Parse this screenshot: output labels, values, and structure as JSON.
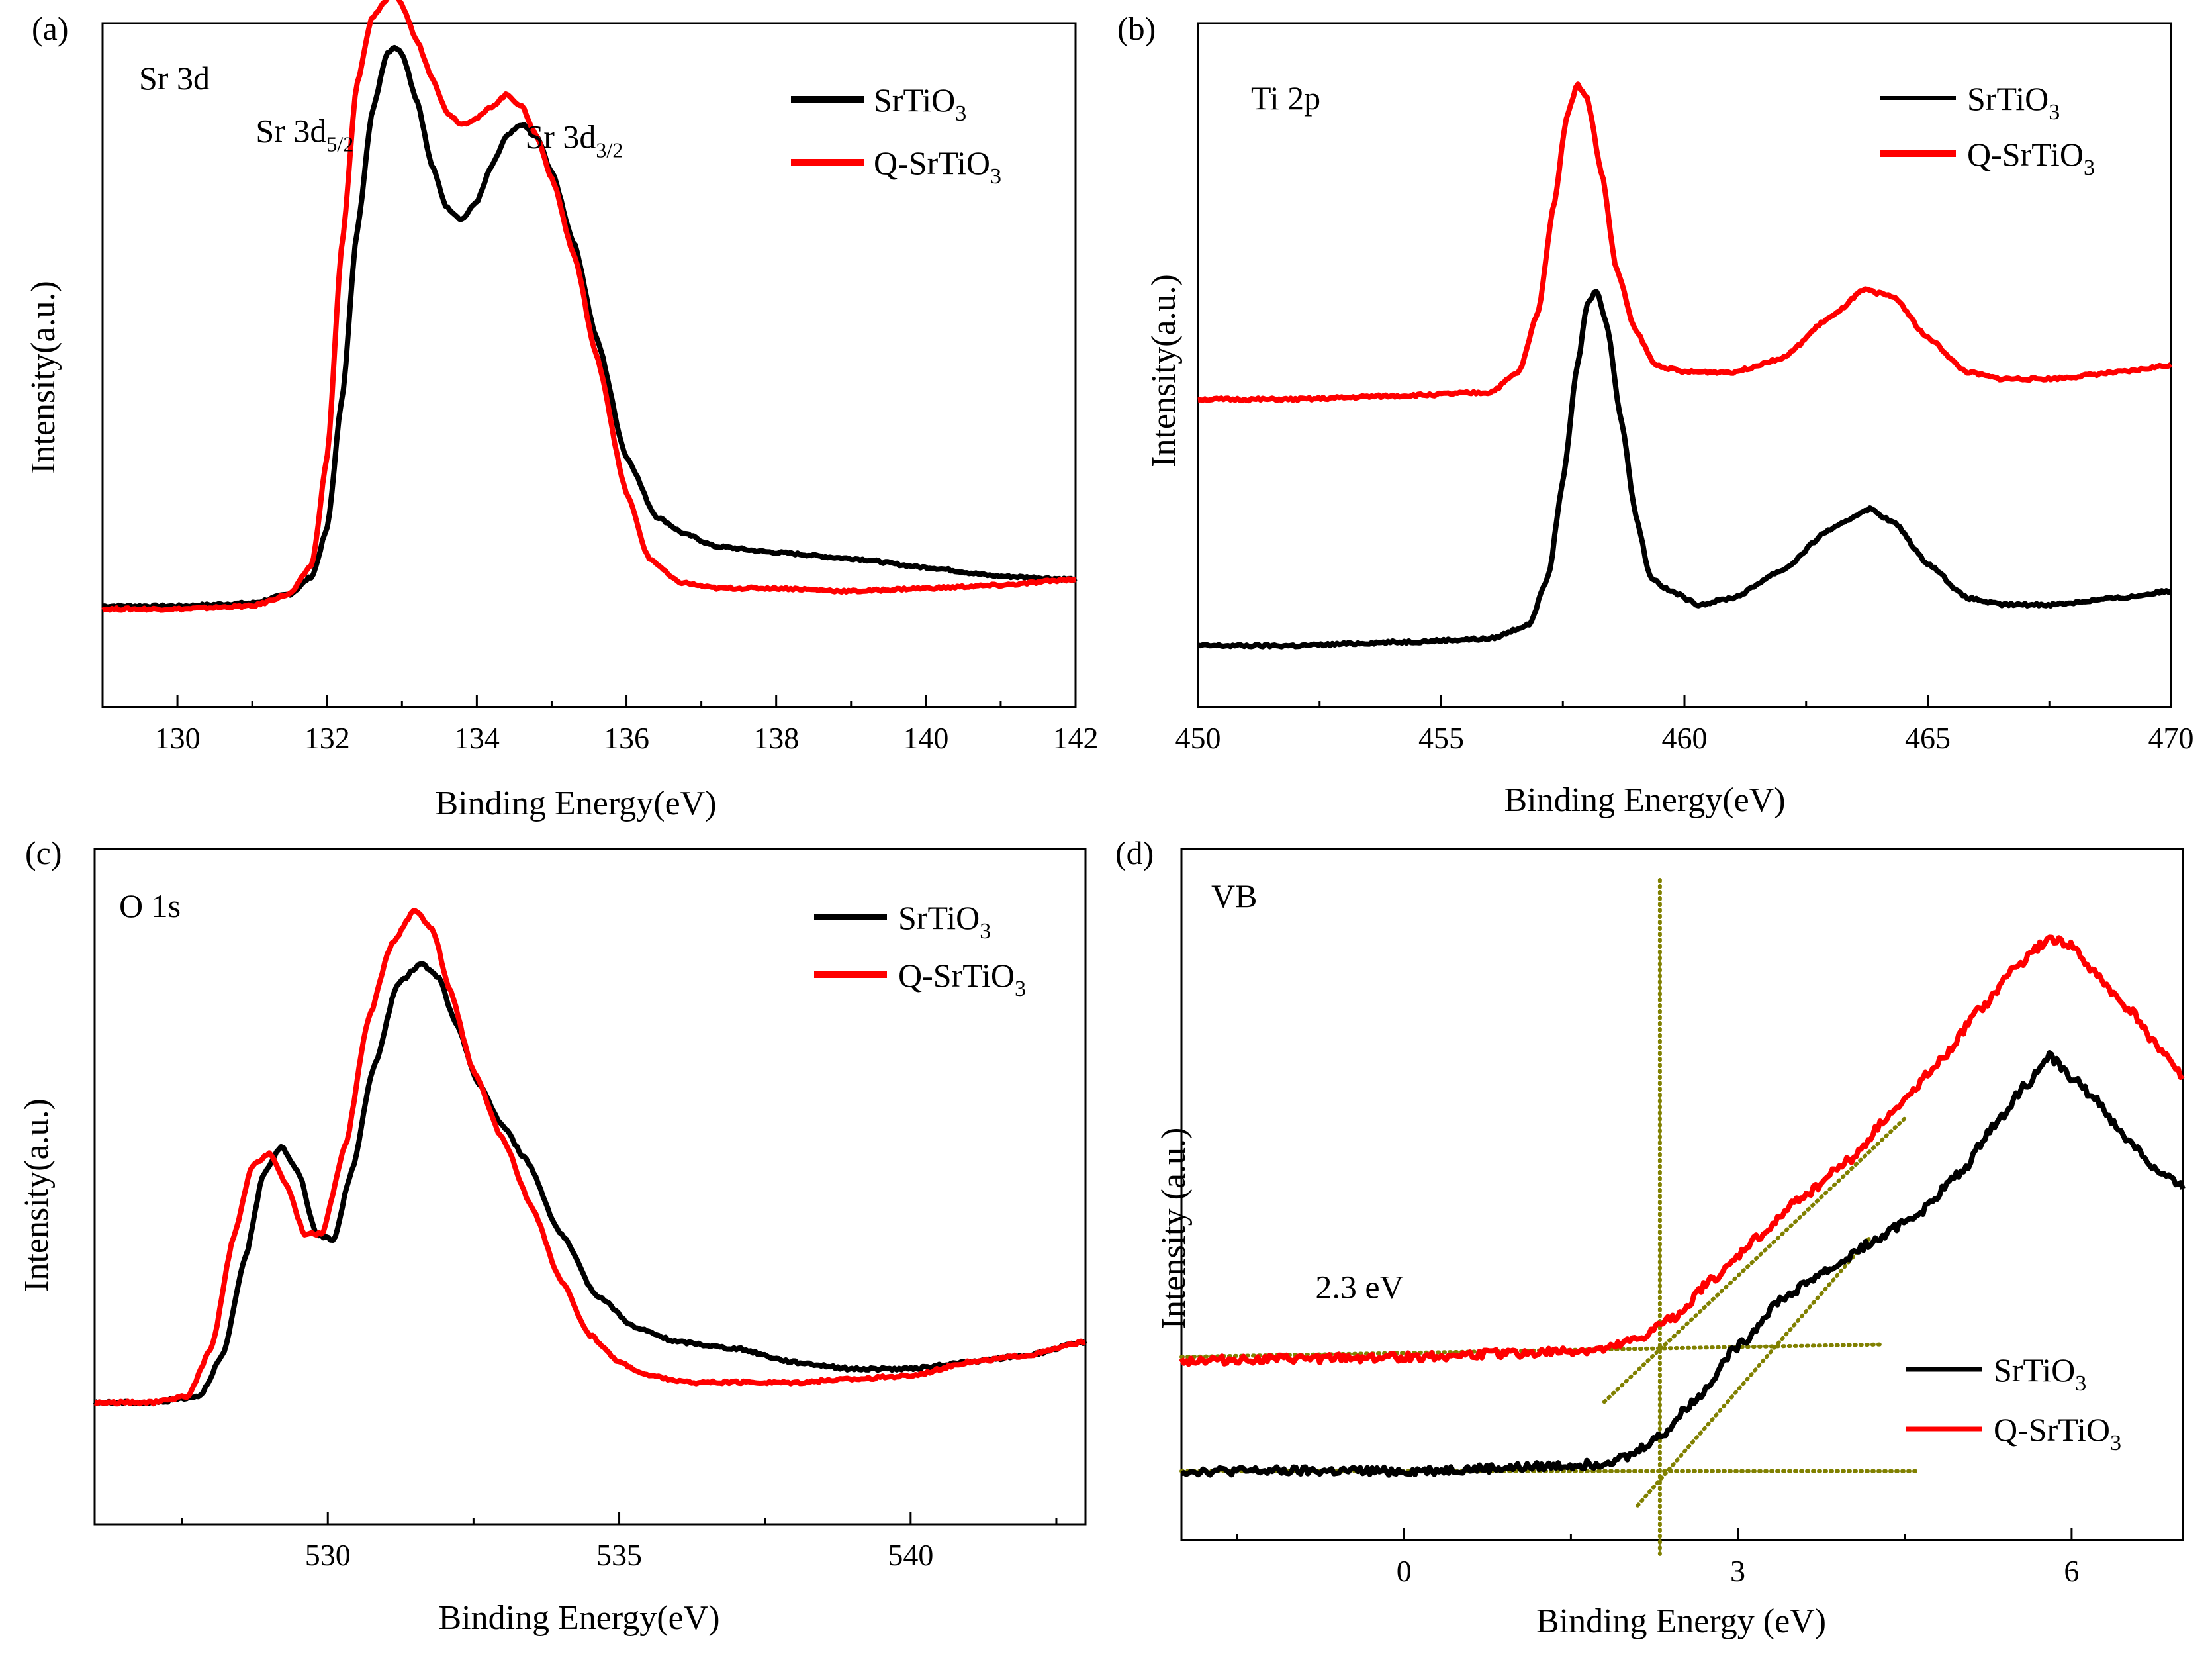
{
  "figure": {
    "colors": {
      "srtio3": "#000000",
      "q_srtio3": "#ff0000",
      "guide": "#808000",
      "axis": "#000000"
    }
  },
  "chart_data": [
    {
      "type": "line",
      "panel": "(a)",
      "region": "Sr 3d",
      "xlabel": "Binding Energy(eV)",
      "ylabel": "Intensity(a.u.)",
      "xlim": [
        129,
        142
      ],
      "ylim": [
        0,
        1.15
      ],
      "xticks": [
        130,
        132,
        134,
        136,
        138,
        140,
        142
      ],
      "legend": [
        "SrTiO3",
        "Q-SrTiO3"
      ],
      "legend_position": "top-right",
      "annotations": [
        {
          "base": "Sr 3d",
          "sub": "5/2",
          "x": 131.7,
          "y": 0.95
        },
        {
          "base": "Sr 3d",
          "sub": "3/2",
          "x": 135.3,
          "y": 0.94
        }
      ],
      "series": [
        {
          "name": "SrTiO3",
          "x": [
            129,
            130,
            131,
            131.5,
            131.8,
            132.0,
            132.2,
            132.4,
            132.6,
            132.8,
            132.9,
            133.0,
            133.2,
            133.4,
            133.6,
            133.8,
            134.0,
            134.2,
            134.4,
            134.6,
            134.8,
            135.0,
            135.3,
            135.6,
            136.0,
            136.4,
            136.8,
            137.2,
            138,
            139,
            140,
            141,
            142
          ],
          "values": [
            0.17,
            0.17,
            0.175,
            0.19,
            0.22,
            0.3,
            0.52,
            0.8,
            1.0,
            1.1,
            1.11,
            1.1,
            1.02,
            0.91,
            0.84,
            0.82,
            0.85,
            0.91,
            0.96,
            0.98,
            0.96,
            0.9,
            0.78,
            0.62,
            0.42,
            0.32,
            0.29,
            0.27,
            0.26,
            0.25,
            0.235,
            0.22,
            0.215
          ]
        },
        {
          "name": "Q-SrTiO3",
          "x": [
            129,
            130,
            131,
            131.5,
            131.8,
            132.0,
            132.2,
            132.4,
            132.6,
            132.8,
            132.9,
            133.0,
            133.2,
            133.4,
            133.6,
            133.8,
            134.0,
            134.2,
            134.4,
            134.6,
            134.8,
            135.0,
            135.3,
            135.6,
            136.0,
            136.3,
            136.7,
            137.2,
            138,
            139,
            140,
            141,
            142
          ],
          "values": [
            0.165,
            0.165,
            0.17,
            0.19,
            0.24,
            0.42,
            0.78,
            1.05,
            1.16,
            1.19,
            1.2,
            1.18,
            1.12,
            1.06,
            1.0,
            0.98,
            0.99,
            1.01,
            1.03,
            1.01,
            0.96,
            0.89,
            0.76,
            0.59,
            0.36,
            0.25,
            0.21,
            0.2,
            0.2,
            0.195,
            0.2,
            0.205,
            0.215
          ]
        }
      ]
    },
    {
      "type": "line",
      "panel": "(b)",
      "region": "Ti 2p",
      "xlabel": "Binding Energy(eV)",
      "ylabel": "Intensity(a.u.)",
      "xlim": [
        450,
        470
      ],
      "ylim": [
        0,
        1.0
      ],
      "xticks": [
        450,
        455,
        460,
        465,
        470
      ],
      "legend": [
        "SrTiO3",
        "Q-SrTiO3"
      ],
      "legend_position": "top-right",
      "series": [
        {
          "name": "SrTiO3",
          "x": [
            450,
            452,
            454,
            456,
            456.8,
            457.2,
            457.5,
            457.8,
            458.0,
            458.2,
            458.4,
            458.7,
            459.0,
            459.3,
            459.7,
            460.3,
            461,
            462,
            463,
            463.8,
            464.3,
            465,
            465.8,
            466.5,
            467.5,
            469,
            470
          ],
          "values": [
            0.09,
            0.09,
            0.095,
            0.1,
            0.12,
            0.19,
            0.33,
            0.5,
            0.59,
            0.61,
            0.56,
            0.42,
            0.28,
            0.19,
            0.17,
            0.15,
            0.16,
            0.2,
            0.26,
            0.29,
            0.27,
            0.21,
            0.16,
            0.15,
            0.15,
            0.16,
            0.17
          ]
        },
        {
          "name": "Q-SrTiO3",
          "x": [
            450,
            452,
            454,
            456,
            456.6,
            457.0,
            457.3,
            457.6,
            457.8,
            458.0,
            458.3,
            458.6,
            459.0,
            459.4,
            460,
            461,
            462,
            463,
            463.7,
            464.3,
            465,
            465.8,
            466.5,
            467.5,
            469,
            470
          ],
          "values": [
            0.45,
            0.45,
            0.455,
            0.46,
            0.49,
            0.58,
            0.73,
            0.87,
            0.91,
            0.89,
            0.78,
            0.64,
            0.55,
            0.5,
            0.49,
            0.49,
            0.51,
            0.57,
            0.61,
            0.6,
            0.54,
            0.49,
            0.48,
            0.48,
            0.49,
            0.5
          ]
        }
      ]
    },
    {
      "type": "line",
      "panel": "(c)",
      "region": "O 1s",
      "xlabel": "Binding Energy(eV)",
      "ylabel": "Intensity(a.u.)",
      "xlim": [
        526,
        543
      ],
      "ylim": [
        0,
        1.0
      ],
      "xticks": [
        530,
        535,
        540
      ],
      "legend": [
        "SrTiO3",
        "Q-SrTiO3"
      ],
      "legend_position": "top-right",
      "series": [
        {
          "name": "SrTiO3",
          "x": [
            526,
            527,
            527.8,
            528.2,
            528.6,
            528.9,
            529.2,
            529.5,
            529.8,
            530.1,
            530.4,
            530.8,
            531.2,
            531.6,
            531.9,
            532.2,
            532.6,
            533.0,
            533.4,
            534.0,
            534.6,
            535.3,
            536.0,
            537,
            538,
            539,
            540,
            541,
            542,
            543
          ],
          "values": [
            0.18,
            0.18,
            0.19,
            0.25,
            0.4,
            0.52,
            0.56,
            0.52,
            0.43,
            0.42,
            0.52,
            0.68,
            0.8,
            0.83,
            0.81,
            0.74,
            0.65,
            0.59,
            0.54,
            0.43,
            0.34,
            0.29,
            0.27,
            0.26,
            0.24,
            0.23,
            0.23,
            0.24,
            0.25,
            0.27
          ]
        },
        {
          "name": "Q-SrTiO3",
          "x": [
            526,
            527,
            527.6,
            528.0,
            528.4,
            528.7,
            529.0,
            529.3,
            529.6,
            529.9,
            530.3,
            530.7,
            531.1,
            531.5,
            531.8,
            532.1,
            532.5,
            533.0,
            533.5,
            534.0,
            534.5,
            535.0,
            535.5,
            536.2,
            537,
            538,
            539,
            540,
            541,
            542,
            543
          ],
          "values": [
            0.18,
            0.18,
            0.19,
            0.26,
            0.43,
            0.53,
            0.55,
            0.5,
            0.43,
            0.43,
            0.56,
            0.75,
            0.86,
            0.91,
            0.88,
            0.79,
            0.67,
            0.57,
            0.47,
            0.36,
            0.28,
            0.24,
            0.22,
            0.21,
            0.21,
            0.21,
            0.215,
            0.22,
            0.24,
            0.25,
            0.27
          ]
        }
      ]
    },
    {
      "type": "line",
      "panel": "(d)",
      "region": "VB",
      "xlabel": "Binding Energy (eV)",
      "ylabel": "Intensity (a.u.)",
      "xlim": [
        -2,
        7
      ],
      "ylim": [
        0,
        1.0
      ],
      "xticks": [
        0,
        3,
        6
      ],
      "legend": [
        "SrTiO3",
        "Q-SrTiO3"
      ],
      "legend_position": "bottom-right",
      "annotations": [
        {
          "text": "2.3 eV",
          "x": -0.4,
          "y": 0.35
        }
      ],
      "vb_edge_ev": 2.3,
      "series": [
        {
          "name": "SrTiO3",
          "x": [
            -2,
            -1,
            0,
            1,
            1.7,
            2.0,
            2.3,
            2.6,
            3.0,
            3.4,
            3.8,
            4.2,
            4.6,
            5.0,
            5.3,
            5.6,
            5.8,
            6.0,
            6.2,
            6.5,
            6.8,
            7
          ],
          "values": [
            0.1,
            0.1,
            0.1,
            0.105,
            0.11,
            0.12,
            0.15,
            0.2,
            0.28,
            0.35,
            0.39,
            0.43,
            0.47,
            0.53,
            0.6,
            0.66,
            0.7,
            0.67,
            0.64,
            0.58,
            0.53,
            0.51
          ]
        },
        {
          "name": "Q-SrTiO3",
          "x": [
            -2,
            -1,
            0,
            1,
            1.8,
            2.1,
            2.4,
            2.8,
            3.2,
            3.6,
            4.0,
            4.4,
            4.8,
            5.2,
            5.5,
            5.8,
            6.0,
            6.2,
            6.5,
            6.8,
            7
          ],
          "values": [
            0.26,
            0.262,
            0.265,
            0.27,
            0.275,
            0.29,
            0.32,
            0.38,
            0.44,
            0.5,
            0.55,
            0.62,
            0.69,
            0.77,
            0.83,
            0.87,
            0.86,
            0.82,
            0.77,
            0.71,
            0.67
          ]
        }
      ]
    }
  ]
}
